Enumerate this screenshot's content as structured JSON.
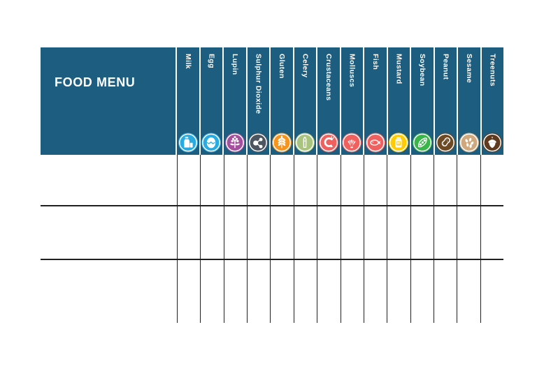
{
  "table": {
    "title": "FOOD MENU",
    "header_bg": "#1d5e80",
    "grid_color": "#1f1f1f",
    "columns": [
      {
        "label": "Milk",
        "icon": "milk-icon",
        "color": "#29abe2"
      },
      {
        "label": "Egg",
        "icon": "egg-icon",
        "color": "#29abe2"
      },
      {
        "label": "Lupin",
        "icon": "lupin-icon",
        "color": "#a4509f"
      },
      {
        "label": "Sulphur Dioxide",
        "icon": "sulphur-dioxide-icon",
        "color": "#4d5660"
      },
      {
        "label": "Gluten",
        "icon": "gluten-icon",
        "color": "#f7941e"
      },
      {
        "label": "Celery",
        "icon": "celery-icon",
        "color": "#a9c47e"
      },
      {
        "label": "Crustaceans",
        "icon": "crustaceans-icon",
        "color": "#f0605f"
      },
      {
        "label": "Molluscs",
        "icon": "molluscs-icon",
        "color": "#f0605f"
      },
      {
        "label": "Fish",
        "icon": "fish-icon",
        "color": "#f0605f"
      },
      {
        "label": "Mustard",
        "icon": "mustard-icon",
        "color": "#ffcb05"
      },
      {
        "label": "Soybean",
        "icon": "soybean-icon",
        "color": "#3ab54a"
      },
      {
        "label": "Peanut",
        "icon": "peanut-icon",
        "color": "#6d4a24"
      },
      {
        "label": "Sesame",
        "icon": "sesame-icon",
        "color": "#cfa87e"
      },
      {
        "label": "Treenuts",
        "icon": "treenuts-icon",
        "color": "#5f3a1e"
      }
    ],
    "rows": [
      {
        "name": "",
        "cells": [
          "",
          "",
          "",
          "",
          "",
          "",
          "",
          "",
          "",
          "",
          "",
          "",
          "",
          ""
        ]
      },
      {
        "name": "",
        "cells": [
          "",
          "",
          "",
          "",
          "",
          "",
          "",
          "",
          "",
          "",
          "",
          "",
          "",
          ""
        ]
      },
      {
        "name": "",
        "cells": [
          "",
          "",
          "",
          "",
          "",
          "",
          "",
          "",
          "",
          "",
          "",
          "",
          "",
          ""
        ]
      }
    ]
  }
}
